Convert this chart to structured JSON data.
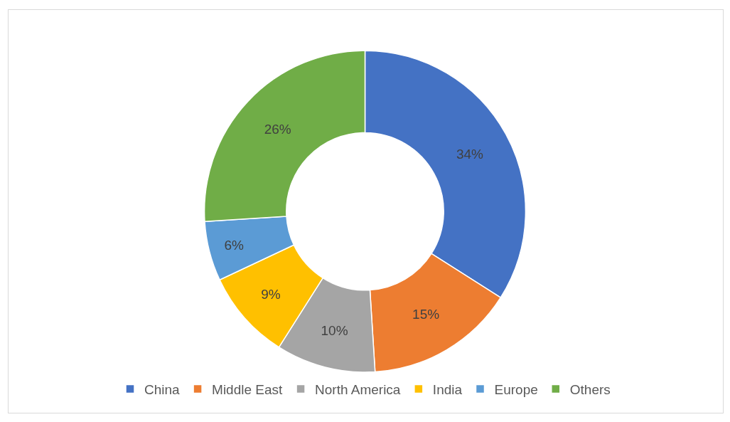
{
  "chart_data": {
    "type": "donut",
    "categories": [
      "China",
      "Middle East",
      "North America",
      "India",
      "Europe",
      "Others"
    ],
    "values": [
      34,
      15,
      10,
      9,
      6,
      26
    ],
    "colors": [
      "#4472c4",
      "#ed7d31",
      "#a5a5a5",
      "#ffc000",
      "#5b9bd5",
      "#70ad47"
    ],
    "value_labels": [
      "34%",
      "15%",
      "10%",
      "9%",
      "6%",
      "26%"
    ],
    "legend": "bottom"
  }
}
